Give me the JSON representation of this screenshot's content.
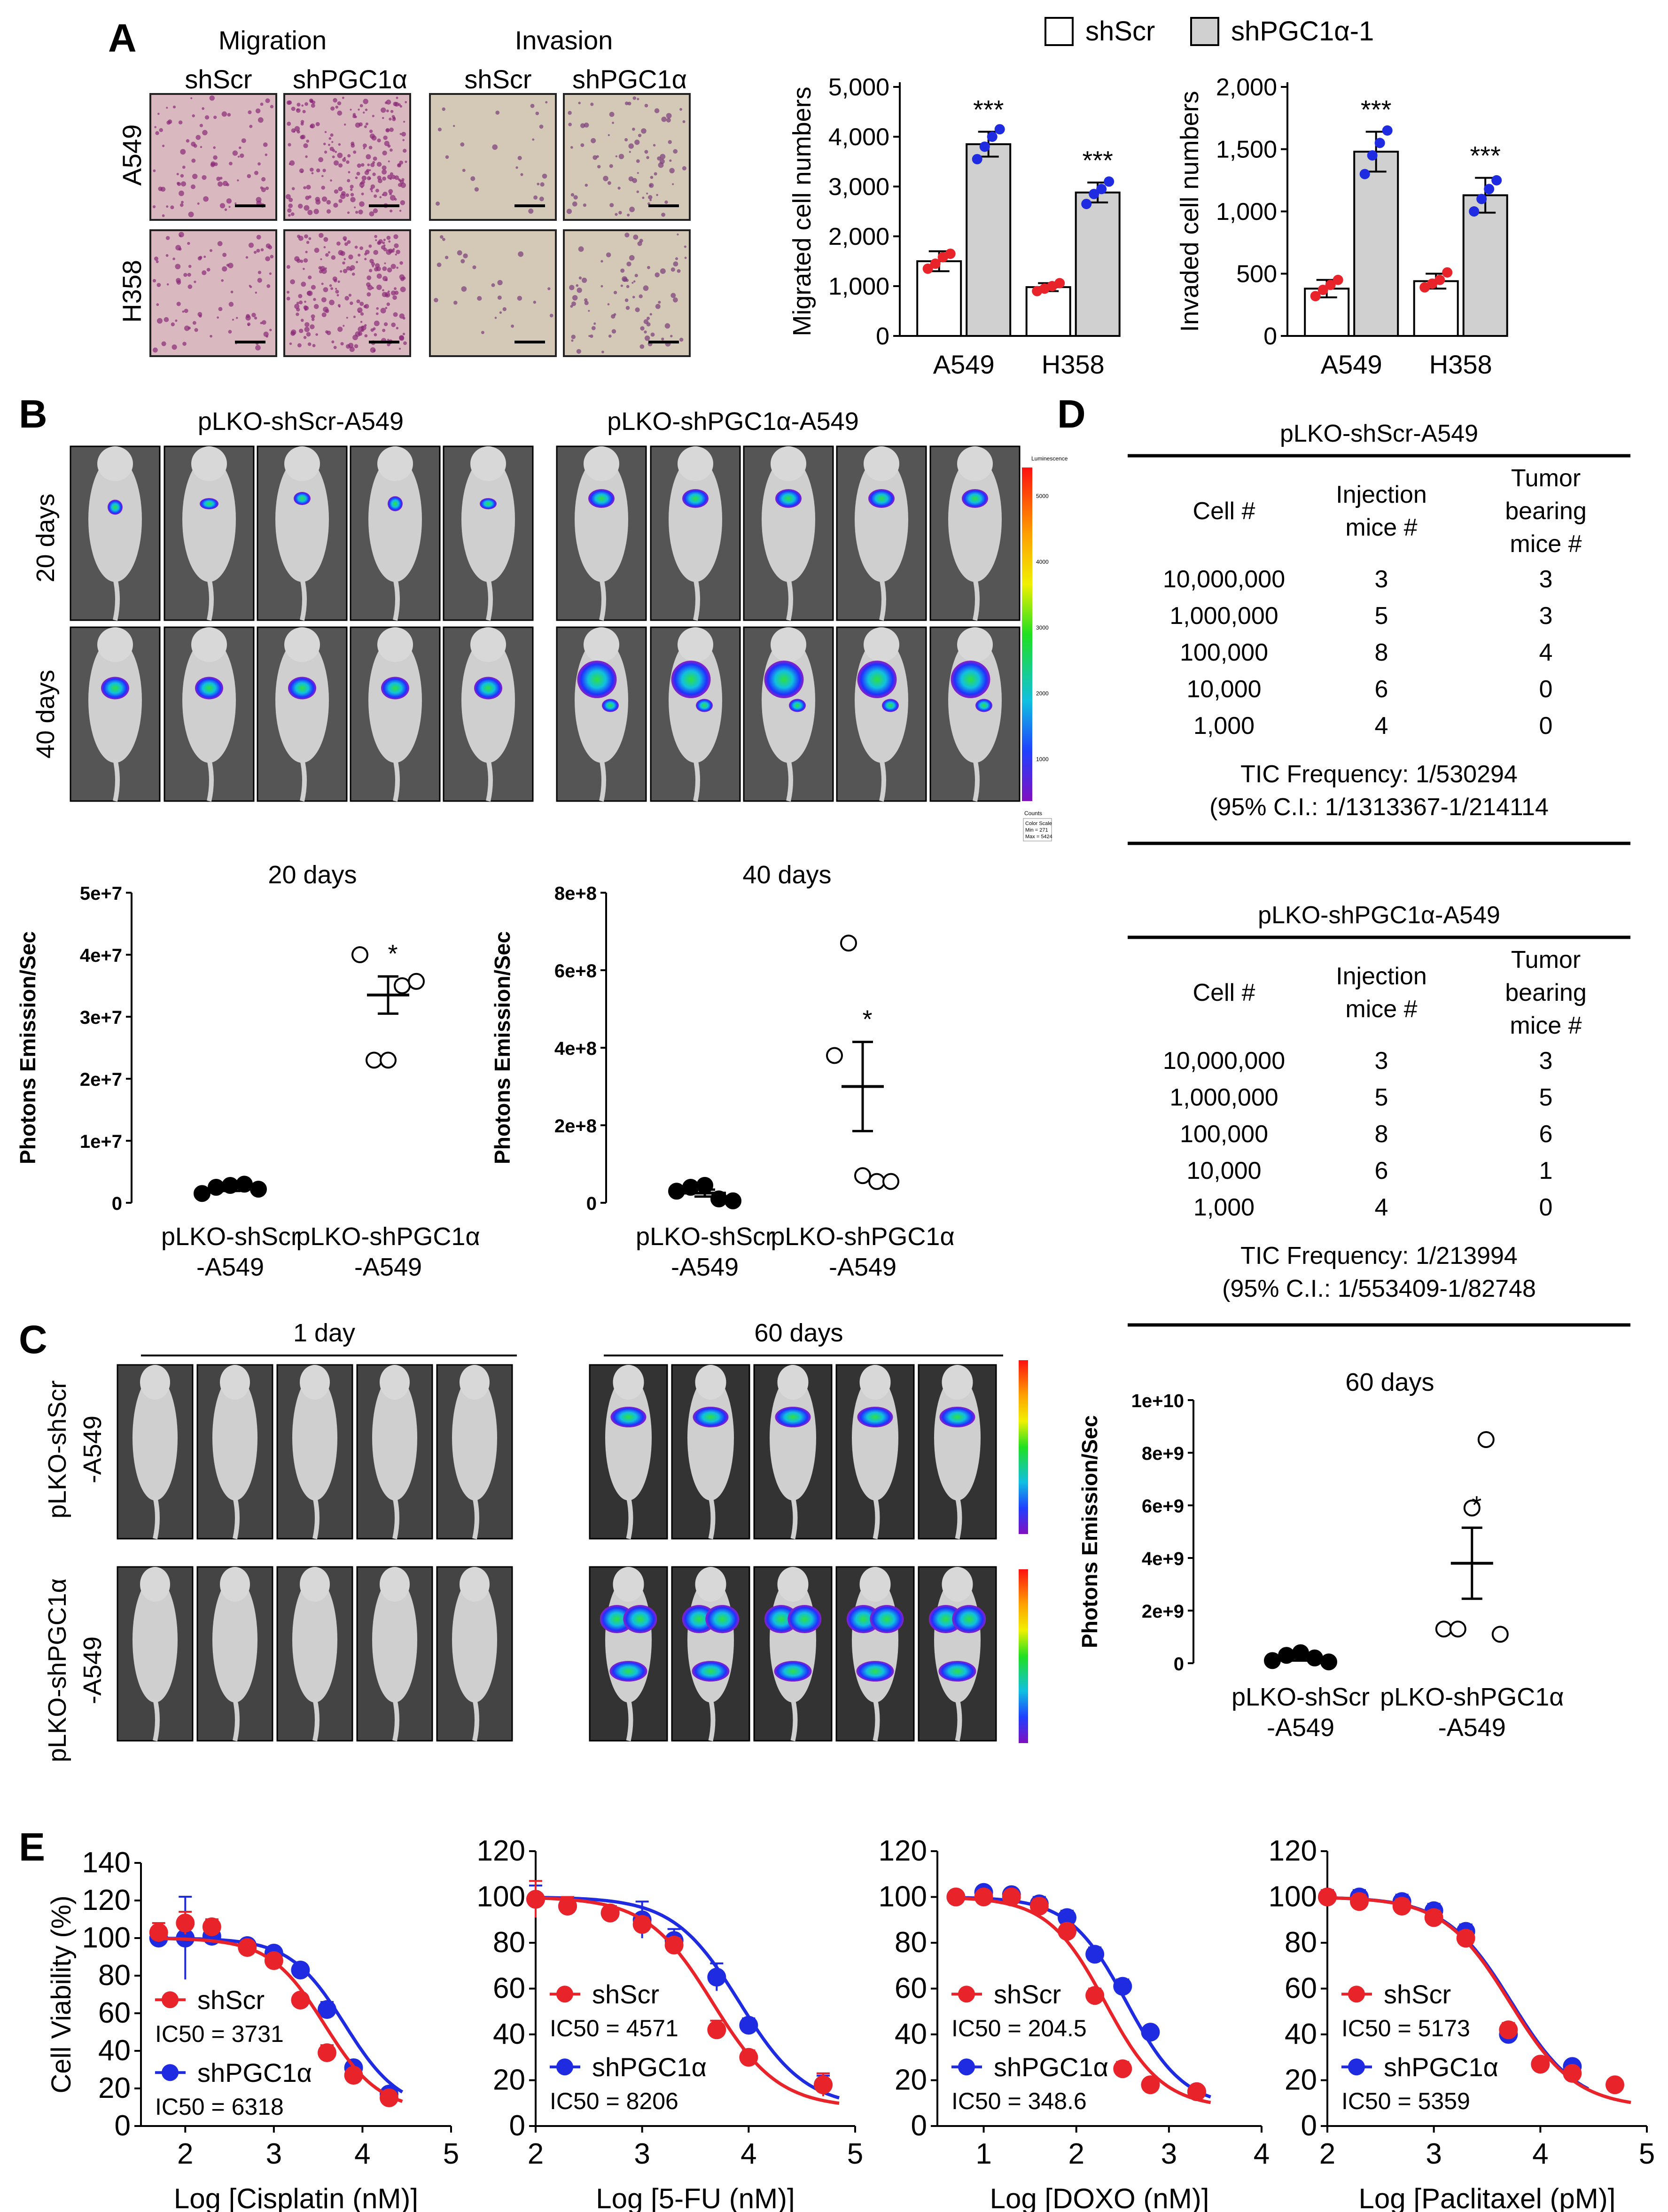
{
  "panel_letters": {
    "A": "A",
    "B": "B",
    "C": "C",
    "D": "D",
    "E": "E"
  },
  "colors": {
    "shScr": "#e8e8e8",
    "shPGC": "#d0d0d0",
    "red": "#e8242a",
    "blue": "#1f2be0",
    "tissue_pink": "#d9b8c0",
    "tissue_gray": "#d4c8b6"
  },
  "panelA": {
    "micro": {
      "migration": "Migration",
      "invasion": "Invasion",
      "col_labels": [
        "shScr",
        "shPGC1α",
        "shScr",
        "shPGC1α"
      ],
      "row_labels": [
        "A549",
        "H358"
      ]
    },
    "legend": {
      "shScr": "shScr",
      "shPGC": "shPGC1α-1"
    }
  },
  "panelB": {
    "img_label_left": "pLKO-shScr-A549",
    "img_label_right": "pLKO-shPGC1α-A549",
    "row_labels": [
      "20 days",
      "40 days"
    ],
    "colorbar_title": "Luminescence",
    "colorbar_ticks": [
      "5000",
      "4000",
      "3000",
      "2000",
      "1000"
    ],
    "colorbar_unit": "Counts",
    "colorbar_scale": [
      "Color Scale",
      "Min = 271",
      "Max = 5424"
    ]
  },
  "panelC": {
    "top_1day": "1 day",
    "top_60days": "60 days",
    "row_labels": [
      [
        "pLKO-shScr",
        "-A549"
      ],
      [
        "pLKO-shPGC1α",
        "-A549"
      ]
    ]
  },
  "panelD": {
    "tables": [
      {
        "title": "pLKO-shScr-A549",
        "headers": {
          "cell": "Cell #",
          "inj": [
            "Injection",
            "mice #"
          ],
          "tumor": [
            "Tumor",
            "bearing",
            "mice #"
          ]
        },
        "rows": [
          [
            "10,000,000",
            "3",
            "3"
          ],
          [
            "1,000,000",
            "5",
            "3"
          ],
          [
            "100,000",
            "8",
            "4"
          ],
          [
            "10,000",
            "6",
            "0"
          ],
          [
            "1,000",
            "4",
            "0"
          ]
        ],
        "freq": "TIC Frequency: 1/530294",
        "ci": "(95% C.I.: 1/1313367-1/214114"
      },
      {
        "title": "pLKO-shPGC1α-A549",
        "headers": {
          "cell": "Cell #",
          "inj": [
            "Injection",
            "mice #"
          ],
          "tumor": [
            "Tumor",
            "bearing",
            "mice #"
          ]
        },
        "rows": [
          [
            "10,000,000",
            "3",
            "3"
          ],
          [
            "1,000,000",
            "5",
            "5"
          ],
          [
            "100,000",
            "8",
            "6"
          ],
          [
            "10,000",
            "6",
            "1"
          ],
          [
            "1,000",
            "4",
            "0"
          ]
        ],
        "freq": "TIC Frequency: 1/213994",
        "ci": "(95% C.I.: 1/553409-1/82748"
      }
    ]
  },
  "chart_data": [
    {
      "id": "A_mig",
      "type": "bar",
      "ylabel": "Migrated cell numbers",
      "categories": [
        "A549",
        "H358"
      ],
      "yticks": [
        "0",
        "1,000",
        "2,000",
        "3,000",
        "4,000",
        "5,000"
      ],
      "ylim": [
        0,
        5000
      ],
      "series": [
        {
          "name": "shScr",
          "values": [
            1500,
            980
          ],
          "err": [
            200,
            80
          ],
          "points": [
            [
              1350,
              1450,
              1580,
              1650
            ],
            [
              900,
              950,
              1000,
              1060
            ]
          ]
        },
        {
          "name": "shPGC1α-1",
          "values": [
            3850,
            2880
          ],
          "err": [
            250,
            200
          ],
          "points": [
            [
              3550,
              3800,
              4000,
              4150
            ],
            [
              2650,
              2850,
              2950,
              3100
            ]
          ]
        }
      ],
      "annotations": [
        "***",
        "***"
      ]
    },
    {
      "id": "A_inv",
      "type": "bar",
      "ylabel": "Invaded cell numbers",
      "categories": [
        "A549",
        "H358"
      ],
      "yticks": [
        "0",
        "500",
        "1,000",
        "1,500",
        "2,000"
      ],
      "ylim": [
        0,
        2000
      ],
      "series": [
        {
          "name": "shScr",
          "values": [
            380,
            440
          ],
          "err": [
            70,
            60
          ],
          "points": [
            [
              320,
              370,
              410,
              450
            ],
            [
              390,
              420,
              450,
              510
            ]
          ]
        },
        {
          "name": "shPGC1α-1",
          "values": [
            1480,
            1130
          ],
          "err": [
            160,
            140
          ],
          "points": [
            [
              1300,
              1450,
              1550,
              1650
            ],
            [
              1000,
              1100,
              1180,
              1250
            ]
          ]
        }
      ],
      "annotations": [
        "***",
        "***"
      ]
    },
    {
      "id": "B_20",
      "type": "scatter",
      "title": "20 days",
      "ylabel": "Photons Emission/Sec",
      "categories": [
        [
          "pLKO-shScr",
          "-A549"
        ],
        [
          "pLKO-shPGC1α",
          "-A549"
        ]
      ],
      "yticks": [
        "0",
        "1e+7",
        "2e+7",
        "3e+7",
        "4e+7",
        "5e+7"
      ],
      "ylim": [
        0,
        50000000
      ],
      "groups": [
        {
          "filled": true,
          "points": [
            1500000,
            2500000,
            2800000,
            3000000,
            2200000
          ],
          "mean": 2400000,
          "sem": 500000
        },
        {
          "filled": false,
          "points": [
            40000000,
            23000000,
            23000000,
            35000000,
            35700000
          ],
          "mean": 33500000,
          "sem": 3000000
        }
      ],
      "annotation": "*"
    },
    {
      "id": "B_40",
      "type": "scatter",
      "title": "40 days",
      "ylabel": "Photons Emission/Sec",
      "categories": [
        [
          "pLKO-shScr",
          "-A549"
        ],
        [
          "pLKO-shPGC1α",
          "-A549"
        ]
      ],
      "yticks": [
        "0",
        "2e+8",
        "4e+8",
        "6e+8",
        "8e+8"
      ],
      "ylim": [
        0,
        800000000
      ],
      "groups": [
        {
          "filled": true,
          "points": [
            30000000,
            40000000,
            45000000,
            10000000,
            5000000
          ],
          "mean": 25000000,
          "sem": 9000000
        },
        {
          "filled": false,
          "points": [
            380000000,
            670000000,
            70000000,
            55000000,
            55000000
          ],
          "mean": 300000000,
          "sem": 115000000
        }
      ],
      "annotation": "*"
    },
    {
      "id": "C_60",
      "type": "scatter",
      "title": "60 days",
      "ylabel": "Photons Emission/Sec",
      "categories": [
        [
          "pLKO-shScr",
          "-A549"
        ],
        [
          "pLKO-shPGC1α",
          "-A549"
        ]
      ],
      "yticks": [
        "0",
        "2e+9",
        "4e+9",
        "6e+9",
        "8e+9",
        "1e+10"
      ],
      "ylim": [
        0,
        10000000000
      ],
      "groups": [
        {
          "filled": true,
          "points": [
            100000000,
            300000000,
            400000000,
            200000000,
            50000000
          ],
          "mean": 200000000,
          "sem": 100000000
        },
        {
          "filled": false,
          "points": [
            1300000000,
            1300000000,
            5900000000,
            8500000000,
            1100000000
          ],
          "mean": 3800000000,
          "sem": 1350000000
        }
      ],
      "annotation": "*"
    },
    {
      "id": "E1",
      "type": "line",
      "xlabel": "Log [Cisplatin (nM)]",
      "ylabel": "Cell Viability (%)",
      "xlim": [
        1.5,
        5
      ],
      "ylim": [
        0,
        140
      ],
      "xticks": [
        "2",
        "3",
        "4",
        "5"
      ],
      "yticks": [
        "0",
        "20",
        "40",
        "60",
        "80",
        "100",
        "120",
        "140"
      ],
      "series": [
        {
          "name": "shScr",
          "ic50_label": "IC50 = 3731",
          "ic50": 3731,
          "x": [
            1.7,
            2.0,
            2.3,
            2.7,
            3.0,
            3.3,
            3.6,
            3.9,
            4.3
          ],
          "y": [
            103,
            108,
            106,
            95,
            88,
            67,
            39,
            27,
            15
          ],
          "err": [
            5,
            6,
            4,
            3,
            3,
            3,
            4,
            3,
            2
          ]
        },
        {
          "name": "shPGC1α",
          "ic50_label": "IC50 = 6318",
          "ic50": 6318,
          "x": [
            1.7,
            2.0,
            2.3,
            2.7,
            3.0,
            3.3,
            3.6,
            3.9,
            4.3
          ],
          "y": [
            100,
            100,
            101,
            96,
            92,
            83,
            62,
            31,
            17
          ],
          "err": [
            4,
            22,
            5,
            3,
            3,
            3,
            4,
            3,
            2
          ]
        }
      ]
    },
    {
      "id": "E2",
      "type": "line",
      "xlabel": "Log [5-FU (nM)]",
      "ylabel": "",
      "xlim": [
        2,
        5
      ],
      "ylim": [
        0,
        120
      ],
      "xticks": [
        "2",
        "3",
        "4",
        "5"
      ],
      "yticks": [
        "0",
        "20",
        "40",
        "60",
        "80",
        "100",
        "120"
      ],
      "series": [
        {
          "name": "shScr",
          "ic50_label": "IC50 = 4571",
          "ic50": 4571,
          "x": [
            2.0,
            2.3,
            2.7,
            3.0,
            3.3,
            3.7,
            4.0,
            4.7
          ],
          "y": [
            99,
            96,
            93,
            88,
            79,
            42,
            30,
            18
          ],
          "err": [
            8,
            4,
            3,
            3,
            3,
            4,
            3,
            5
          ]
        },
        {
          "name": "shPGC1α",
          "ic50_label": "IC50 = 8206",
          "ic50": 8206,
          "x": [
            2.0,
            2.3,
            2.7,
            3.0,
            3.3,
            3.7,
            4.0,
            4.7
          ],
          "y": [
            99,
            96,
            93,
            90,
            81,
            65,
            44,
            18
          ],
          "err": [
            6,
            4,
            3,
            8,
            5,
            6,
            3,
            4
          ]
        }
      ]
    },
    {
      "id": "E3",
      "type": "line",
      "xlabel": "Log [DOXO (nM)]",
      "ylabel": "",
      "xlim": [
        0.5,
        4
      ],
      "ylim": [
        0,
        120
      ],
      "xticks": [
        "1",
        "2",
        "3",
        "4"
      ],
      "yticks": [
        "0",
        "20",
        "40",
        "60",
        "80",
        "100",
        "120"
      ],
      "series": [
        {
          "name": "shScr",
          "ic50_label": "IC50 = 204.5",
          "ic50": 204.5,
          "x": [
            0.7,
            1.0,
            1.3,
            1.6,
            1.9,
            2.2,
            2.5,
            2.8,
            3.3
          ],
          "y": [
            100,
            100,
            100,
            96,
            85,
            57,
            25,
            18,
            15
          ],
          "err": [
            2,
            2,
            2,
            3,
            3,
            3,
            3,
            2,
            2
          ]
        },
        {
          "name": "shPGC1α",
          "ic50_label": "IC50 = 348.6",
          "ic50": 348.6,
          "x": [
            0.7,
            1.0,
            1.3,
            1.6,
            1.9,
            2.2,
            2.5,
            2.8,
            3.3
          ],
          "y": [
            100,
            102,
            101,
            97,
            91,
            75,
            61,
            41,
            15
          ],
          "err": [
            2,
            2,
            2,
            3,
            3,
            3,
            3,
            2,
            2
          ]
        }
      ]
    },
    {
      "id": "E4",
      "type": "line",
      "xlabel": "Log [Paclitaxel (pM)]",
      "ylabel": "",
      "xlim": [
        2,
        5
      ],
      "ylim": [
        0,
        120
      ],
      "xticks": [
        "2",
        "3",
        "4",
        "5"
      ],
      "yticks": [
        "0",
        "20",
        "40",
        "60",
        "80",
        "100",
        "120"
      ],
      "series": [
        {
          "name": "shScr",
          "ic50_label": "IC50 = 5173",
          "ic50": 5173,
          "x": [
            2.0,
            2.3,
            2.7,
            3.0,
            3.3,
            3.7,
            4.0,
            4.3,
            4.7
          ],
          "y": [
            100,
            98,
            96,
            91,
            82,
            42,
            27,
            23,
            18
          ],
          "err": [
            3,
            3,
            3,
            3,
            3,
            3,
            2,
            2,
            2
          ]
        },
        {
          "name": "shPGC1α",
          "ic50_label": "IC50 = 5359",
          "ic50": 5359,
          "x": [
            2.0,
            2.3,
            2.7,
            3.0,
            3.3,
            3.7,
            4.0,
            4.3
          ],
          "y": [
            100,
            100,
            98,
            94,
            85,
            40,
            27,
            26
          ],
          "err": [
            3,
            3,
            3,
            3,
            3,
            3,
            2,
            2
          ]
        }
      ]
    }
  ]
}
